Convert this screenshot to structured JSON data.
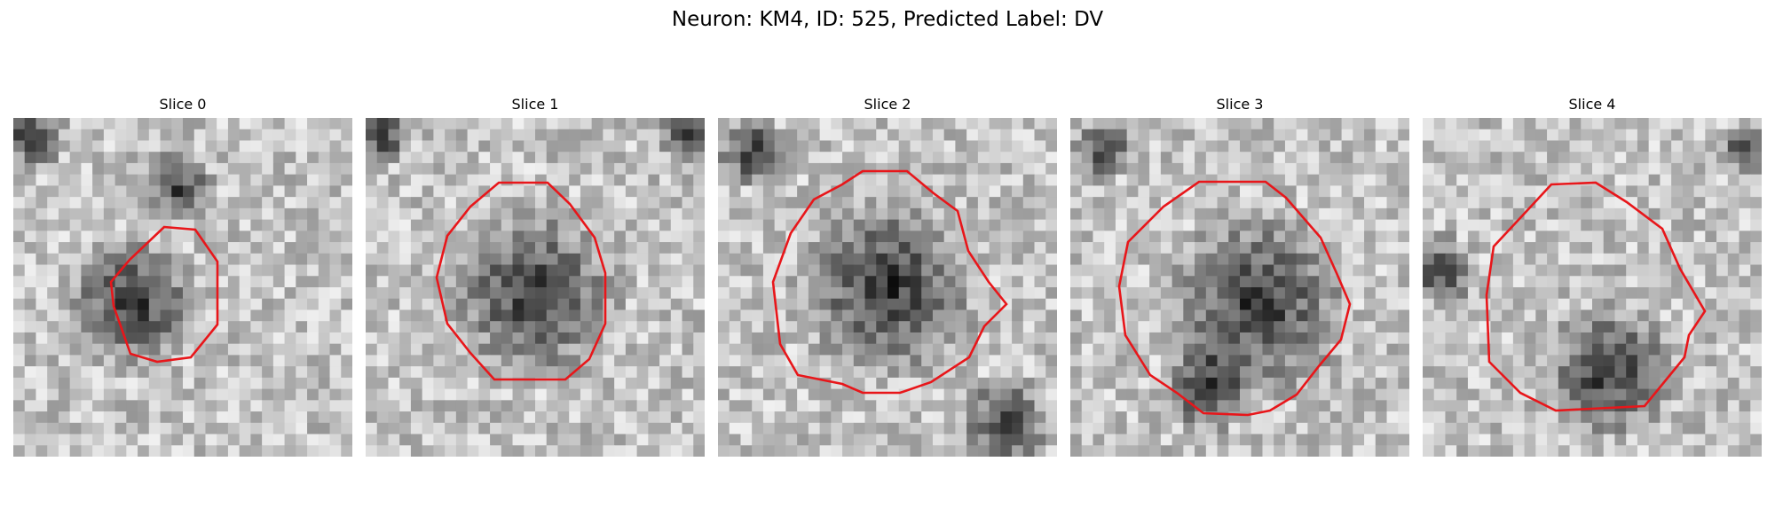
{
  "figure": {
    "title": "Neuron: KM4, ID: 525, Predicted Label: DV"
  },
  "panels": [
    {
      "title": "Slice 0"
    },
    {
      "title": "Slice 1"
    },
    {
      "title": "Slice 2"
    },
    {
      "title": "Slice 3"
    },
    {
      "title": "Slice 4"
    }
  ],
  "colors": {
    "contour": "#e8161a",
    "background": "#ffffff"
  },
  "image_style": "grayscale pixelated microscopy crop with red segmentation contour"
}
